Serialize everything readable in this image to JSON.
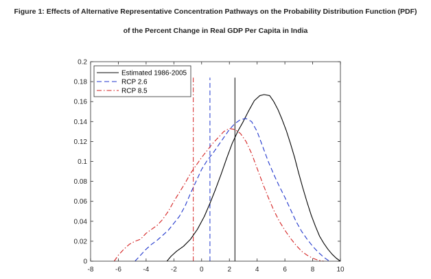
{
  "title_line1": "Figure 1: Effects of Alternative Representative Concentration Pathways on the Probability Distribution Function (PDF)",
  "title_line2": "of the Percent Change in Real GDP Per Capita in India",
  "chart_data": {
    "type": "line",
    "xlim": [
      -8,
      10
    ],
    "ylim": [
      0,
      0.2
    ],
    "xticks": [
      "-8",
      "-6",
      "-4",
      "-2",
      "0",
      "2",
      "4",
      "6",
      "8",
      "10"
    ],
    "yticks": [
      "0",
      "0.02",
      "0.04",
      "0.06",
      "0.08",
      "0.1",
      "0.12",
      "0.14",
      "0.16",
      "0.18",
      "0.2"
    ],
    "grid": false,
    "legend_position": "top-left",
    "series": [
      {
        "name": "Estimated 1986-2005",
        "color": "#000000",
        "style": "solid",
        "mean": 2.4,
        "x": [
          -2.5,
          -2.2,
          -1.8,
          -1.3,
          -0.8,
          -0.3,
          0.2,
          0.6,
          1.0,
          1.4,
          1.8,
          2.2,
          2.6,
          3.0,
          3.4,
          3.8,
          4.2,
          4.5,
          4.9,
          5.2,
          5.5,
          5.8,
          6.1,
          6.4,
          6.7,
          7.0,
          7.3,
          7.6,
          7.9,
          8.2,
          8.5,
          8.8,
          9.1,
          9.4,
          9.7,
          10.0
        ],
        "y": [
          0.0,
          0.005,
          0.01,
          0.015,
          0.022,
          0.032,
          0.045,
          0.058,
          0.072,
          0.087,
          0.103,
          0.118,
          0.13,
          0.14,
          0.151,
          0.161,
          0.166,
          0.167,
          0.166,
          0.16,
          0.152,
          0.142,
          0.131,
          0.118,
          0.104,
          0.088,
          0.073,
          0.059,
          0.046,
          0.035,
          0.025,
          0.018,
          0.012,
          0.007,
          0.003,
          0.0
        ]
      },
      {
        "name": "RCP 2.6",
        "color": "#1f35cc",
        "style": "dashed",
        "mean": 0.6,
        "x": [
          -4.8,
          -4.4,
          -4.0,
          -3.6,
          -3.2,
          -2.8,
          -2.4,
          -2.0,
          -1.6,
          -1.2,
          -0.8,
          -0.4,
          0.0,
          0.4,
          0.8,
          1.2,
          1.6,
          2.0,
          2.4,
          2.8,
          3.2,
          3.6,
          4.0,
          4.4,
          4.8,
          5.2,
          5.6,
          6.0,
          6.4,
          6.8,
          7.2,
          7.6,
          8.0,
          8.4,
          8.8,
          9.2
        ],
        "y": [
          0.0,
          0.006,
          0.012,
          0.017,
          0.021,
          0.026,
          0.031,
          0.038,
          0.045,
          0.055,
          0.068,
          0.08,
          0.092,
          0.101,
          0.108,
          0.116,
          0.124,
          0.132,
          0.138,
          0.142,
          0.143,
          0.14,
          0.13,
          0.115,
          0.1,
          0.087,
          0.075,
          0.064,
          0.052,
          0.04,
          0.03,
          0.022,
          0.015,
          0.009,
          0.004,
          0.0
        ]
      },
      {
        "name": "RCP 8.5",
        "color": "#d42020",
        "style": "dash-dot",
        "mean": -0.6,
        "x": [
          -6.3,
          -6.0,
          -5.6,
          -5.2,
          -4.8,
          -4.4,
          -4.0,
          -3.6,
          -3.2,
          -2.8,
          -2.4,
          -2.0,
          -1.6,
          -1.2,
          -0.8,
          -0.4,
          0.0,
          0.4,
          0.8,
          1.2,
          1.6,
          2.0,
          2.4,
          2.8,
          3.2,
          3.6,
          4.0,
          4.4,
          4.8,
          5.2,
          5.6,
          6.0,
          6.4,
          6.8,
          7.2,
          7.6,
          8.0,
          8.4,
          8.8
        ],
        "y": [
          0.0,
          0.006,
          0.012,
          0.017,
          0.02,
          0.022,
          0.028,
          0.032,
          0.036,
          0.042,
          0.05,
          0.06,
          0.069,
          0.078,
          0.088,
          0.096,
          0.104,
          0.111,
          0.118,
          0.124,
          0.13,
          0.133,
          0.132,
          0.128,
          0.12,
          0.108,
          0.093,
          0.078,
          0.064,
          0.051,
          0.04,
          0.031,
          0.023,
          0.016,
          0.01,
          0.006,
          0.003,
          0.001,
          0.0
        ]
      }
    ]
  }
}
